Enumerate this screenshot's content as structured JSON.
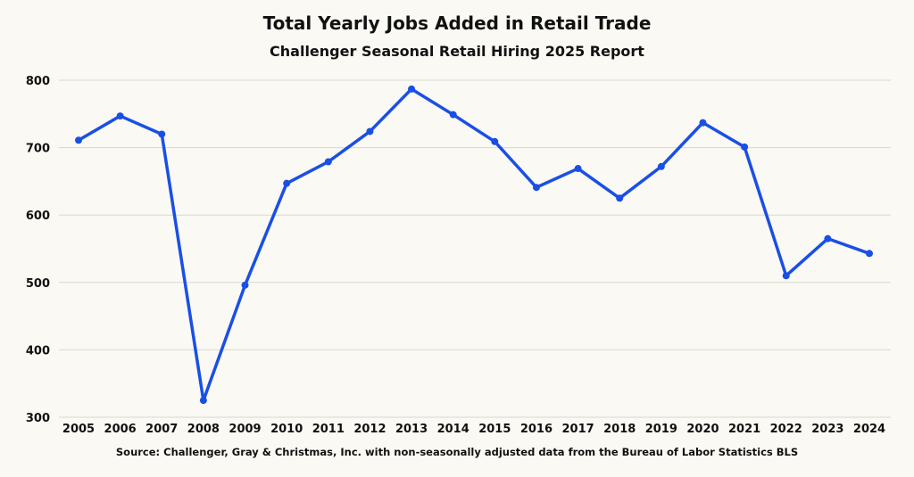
{
  "chart_data": {
    "type": "line",
    "title": "Total Yearly Jobs Added in Retail Trade",
    "subtitle": "Challenger Seasonal Retail Hiring 2025 Report",
    "source": "Source: Challenger, Gray & Christmas, Inc. with non-seasonally adjusted data from the Bureau of Labor Statistics BLS",
    "xlabel": "",
    "ylabel": "",
    "ylim": [
      300,
      800
    ],
    "yticks": [
      300,
      400,
      500,
      600,
      700,
      800
    ],
    "grid": true,
    "legend": "none",
    "color": "#1a4fe6",
    "categories": [
      "2005",
      "2006",
      "2007",
      "2008",
      "2009",
      "2010",
      "2011",
      "2012",
      "2013",
      "2014",
      "2015",
      "2016",
      "2017",
      "2018",
      "2019",
      "2020",
      "2021",
      "2022",
      "2023",
      "2024"
    ],
    "values": [
      711,
      747,
      720,
      325,
      496,
      647,
      679,
      724,
      787,
      749,
      709,
      641,
      669,
      625,
      672,
      737,
      701,
      510,
      565,
      543
    ]
  }
}
